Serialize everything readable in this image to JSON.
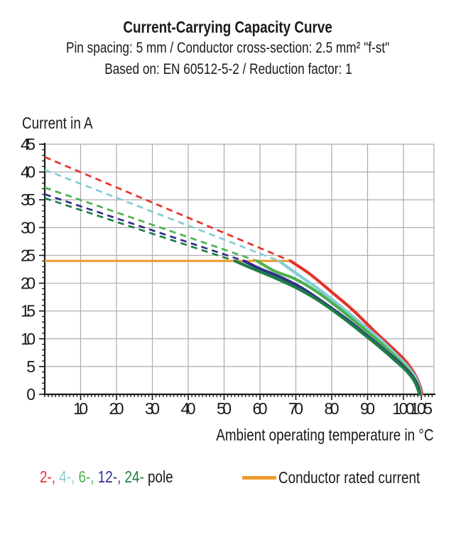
{
  "header": {
    "title": "Current-Carrying Capacity Curve",
    "subtitle1": "Pin spacing: 5 mm / Conductor cross-section: 2.5 mm² \"f-st\"",
    "subtitle2": "Based on: EN 60512-5-2 / Reduction factor: 1"
  },
  "chart_data": {
    "type": "line",
    "title": "Current-Carrying Capacity Curve",
    "xlabel": "Ambient operating temperature in °C",
    "ylabel": "Current in A",
    "xlim": [
      0,
      108.5
    ],
    "ylim": [
      0,
      45
    ],
    "x_major_ticks": [
      10,
      20,
      30,
      40,
      50,
      60,
      70,
      80,
      90,
      100,
      105
    ],
    "x_gridlines": [
      10,
      20,
      30,
      40,
      50,
      60,
      70,
      80,
      90,
      100
    ],
    "x_minor_tick_step": 1,
    "y_major_ticks": [
      0,
      5,
      10,
      15,
      20,
      25,
      30,
      35,
      40,
      45
    ],
    "y_minor_tick_step": 1,
    "grid": true,
    "colors": {
      "grid": "#acacac",
      "axis": "#1a1a1a"
    },
    "rated_current": {
      "value": 24,
      "t_start": 0,
      "t_end": 68.5,
      "color": "#F0992E"
    },
    "series": [
      {
        "name": "2-pole",
        "color": "#E5332B",
        "derating_line": [
          [
            0,
            42.7
          ],
          [
            68.5,
            24
          ]
        ],
        "capacity_curve": [
          [
            68.5,
            24
          ],
          [
            74,
            21.6
          ],
          [
            80,
            18.4
          ],
          [
            86,
            15.1
          ],
          [
            92,
            11.3
          ],
          [
            97,
            8.3
          ],
          [
            100,
            6.4
          ],
          [
            102,
            4.8
          ],
          [
            103.5,
            3.2
          ],
          [
            104.6,
            1.6
          ],
          [
            105.2,
            0
          ]
        ]
      },
      {
        "name": "4-pole",
        "color": "#85CDD5",
        "derating_line": [
          [
            0,
            40.4
          ],
          [
            65.3,
            24
          ]
        ],
        "capacity_curve": [
          [
            65.3,
            24
          ],
          [
            70,
            21.8
          ],
          [
            76,
            19.1
          ],
          [
            82,
            16.1
          ],
          [
            88,
            12.9
          ],
          [
            93,
            10.2
          ],
          [
            98,
            7.1
          ],
          [
            101,
            5.1
          ],
          [
            103,
            3.4
          ],
          [
            104.3,
            1.7
          ],
          [
            104.9,
            0
          ]
        ]
      },
      {
        "name": "6-pole",
        "color": "#4BB24E",
        "derating_line": [
          [
            0,
            37.2
          ],
          [
            59.2,
            24
          ]
        ],
        "capacity_curve": [
          [
            59.2,
            24
          ],
          [
            64,
            22.2
          ],
          [
            70,
            20.7
          ],
          [
            76,
            18.4
          ],
          [
            82,
            15.5
          ],
          [
            88,
            12.3
          ],
          [
            93,
            9.6
          ],
          [
            98,
            6.6
          ],
          [
            101,
            4.6
          ],
          [
            103,
            2.9
          ],
          [
            104.2,
            1.4
          ],
          [
            104.8,
            0
          ]
        ]
      },
      {
        "name": "12-pole",
        "color": "#31308A",
        "derating_line": [
          [
            0,
            36.0
          ],
          [
            55.5,
            24
          ]
        ],
        "capacity_curve": [
          [
            55.5,
            24
          ],
          [
            60,
            22.6
          ],
          [
            66,
            21.0
          ],
          [
            72,
            19.0
          ],
          [
            78,
            16.4
          ],
          [
            84,
            13.6
          ],
          [
            90,
            10.5
          ],
          [
            95,
            7.8
          ],
          [
            99,
            5.6
          ],
          [
            102,
            3.6
          ],
          [
            103.8,
            1.8
          ],
          [
            104.6,
            0
          ]
        ]
      },
      {
        "name": "24-pole",
        "color": "#1E7F45",
        "derating_line": [
          [
            0,
            35.3
          ],
          [
            53,
            24
          ]
        ],
        "capacity_curve": [
          [
            53,
            24
          ],
          [
            58,
            22.6
          ],
          [
            64,
            21.0
          ],
          [
            70,
            19.2
          ],
          [
            76,
            17.0
          ],
          [
            82,
            14.3
          ],
          [
            88,
            11.3
          ],
          [
            93,
            8.7
          ],
          [
            98,
            5.9
          ],
          [
            101,
            4.1
          ],
          [
            103.2,
            2.2
          ],
          [
            104.5,
            0
          ]
        ]
      }
    ]
  },
  "legend": {
    "pole_items": [
      {
        "label": "2-,",
        "color": "#E5332B"
      },
      {
        "label": "4-,",
        "color": "#85CDD5"
      },
      {
        "label": "6-,",
        "color": "#4BB24E"
      },
      {
        "label": "12-,",
        "color": "#31308A"
      },
      {
        "label": "24-",
        "color": "#1E7F45"
      }
    ],
    "suffix": "pole",
    "rated_label": "Conductor rated current"
  }
}
